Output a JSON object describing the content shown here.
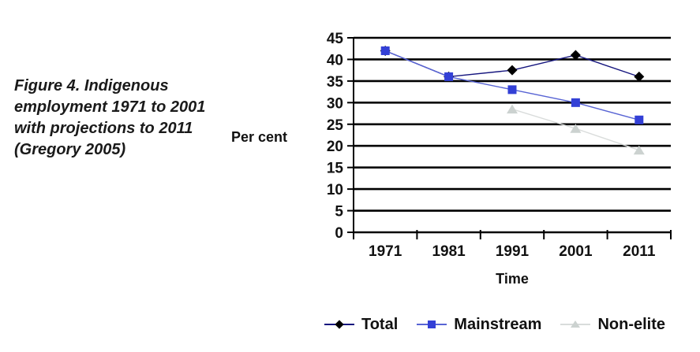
{
  "caption": "Figure 4. Indigenous employment 1971 to 2001 with projections to 2011 (Gregory 2005)",
  "chart_data": {
    "type": "line",
    "x": [
      "1971",
      "1981",
      "1991",
      "2001",
      "2011"
    ],
    "series": [
      {
        "name": "Total",
        "marker": "diamond",
        "line_color": "#15157e",
        "marker_color": "#000000",
        "values": [
          42,
          36,
          37.5,
          41,
          36
        ]
      },
      {
        "name": "Mainstream",
        "marker": "square",
        "line_color": "#5864d4",
        "marker_color": "#3340d6",
        "values": [
          42,
          36,
          33,
          30,
          26
        ]
      },
      {
        "name": "Non-elite",
        "marker": "triangle",
        "line_color": "#d9dcdb",
        "marker_color": "#ccd2d0",
        "values": [
          null,
          null,
          28.5,
          24,
          19
        ]
      }
    ],
    "title": "",
    "xlabel": "Time",
    "ylabel": "Per cent",
    "ylim": [
      0,
      45
    ],
    "ytick_step": 5,
    "grid": true,
    "gridline_color": "#000000",
    "axis_color": "#000000",
    "legend_position": "bottom"
  }
}
